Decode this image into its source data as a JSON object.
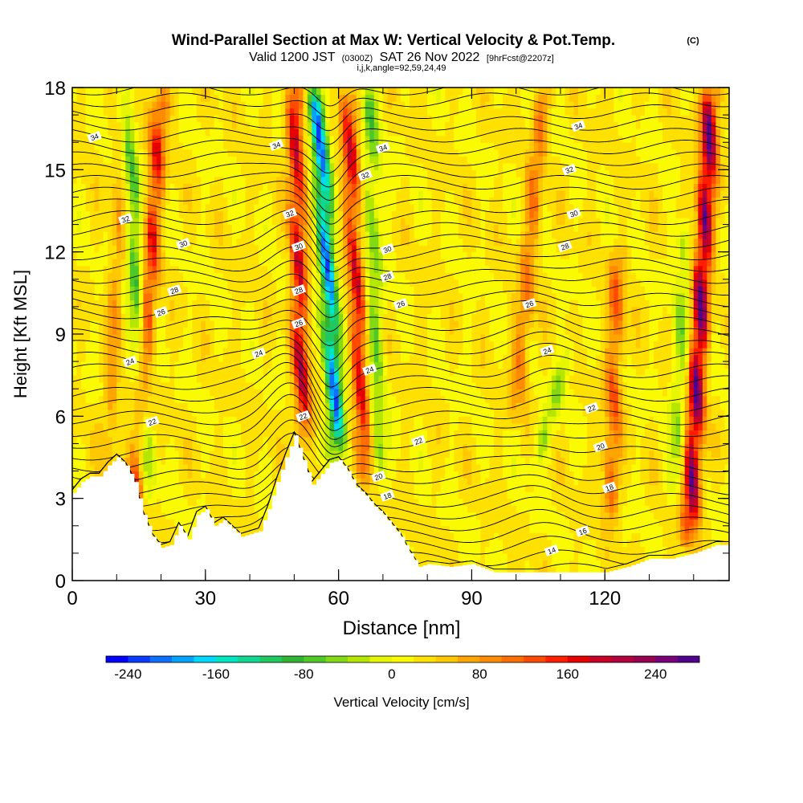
{
  "chart_data": {
    "type": "heatmap",
    "title": "Wind-Parallel Section at Max W: Vertical Velocity & Pot.Temp.",
    "title_mark": "(C)",
    "subtitle_parts": [
      "Valid 1200 JST",
      "(0300Z)",
      "SAT 26 Nov 2022",
      "[9hrFcst@2207z]"
    ],
    "subtitle2": "i,j,k,angle=92,59,24,49",
    "xlabel": "Distance [nm]",
    "ylabel": "Height [Kft MSL]",
    "xlim": [
      0,
      148
    ],
    "ylim": [
      0,
      18
    ],
    "x_ticks": [
      0,
      30,
      60,
      90,
      120
    ],
    "y_ticks": [
      0,
      3,
      6,
      9,
      12,
      15,
      18
    ],
    "x_minor_step": 10,
    "y_minor_step": 1,
    "colorbar": {
      "label": "Vertical Velocity [cm/s]",
      "min": -260,
      "max": 280,
      "tick_values": [
        -240,
        -160,
        -80,
        0,
        80,
        160,
        240
      ],
      "tick_labels": [
        "-240",
        "-160",
        "-80",
        "0",
        "80",
        "160",
        "240"
      ],
      "colors": [
        "#0000ff",
        "#0a3cff",
        "#0f70ff",
        "#00a4ff",
        "#00d8ff",
        "#00e6c0",
        "#10d890",
        "#20c860",
        "#32b432",
        "#50c828",
        "#82d914",
        "#b4e600",
        "#e6f500",
        "#fafa00",
        "#ffe100",
        "#ffc800",
        "#ffa500",
        "#ff8c00",
        "#ff6e00",
        "#ff4b00",
        "#ff1e00",
        "#e60000",
        "#c80028",
        "#b4003c",
        "#960050",
        "#780078",
        "#50008c"
      ]
    },
    "theta_isentrope_labels": [
      "14",
      "16",
      "18",
      "20",
      "22",
      "24",
      "26",
      "28",
      "30",
      "32",
      "34"
    ],
    "terrain_profile": {
      "x": [
        0,
        2,
        4,
        6,
        8,
        10,
        12,
        14,
        16,
        18,
        20,
        22,
        24,
        26,
        28,
        30,
        32,
        34,
        36,
        38,
        40,
        42,
        44,
        46,
        48,
        50,
        52,
        54,
        56,
        58,
        60,
        62,
        64,
        66,
        68,
        70,
        72,
        74,
        76,
        78,
        80,
        85,
        90,
        95,
        100,
        105,
        110,
        115,
        120,
        125,
        130,
        135,
        140,
        145,
        148
      ],
      "z": [
        3.2,
        3.6,
        3.8,
        3.8,
        4.2,
        4.5,
        4.2,
        3.6,
        2.4,
        1.6,
        1.2,
        1.3,
        2.0,
        1.5,
        2.4,
        2.6,
        2.0,
        2.2,
        1.9,
        1.6,
        1.7,
        1.8,
        2.6,
        3.6,
        4.5,
        5.3,
        4.4,
        3.5,
        3.9,
        4.3,
        4.4,
        4.0,
        3.4,
        3.1,
        2.7,
        2.4,
        2.0,
        1.6,
        1.0,
        0.5,
        0.6,
        0.5,
        0.6,
        0.3,
        0.3,
        0.3,
        0.3,
        0.3,
        0.3,
        0.5,
        0.8,
        0.8,
        1.0,
        1.3,
        1.3
      ]
    },
    "updraft_bands": [
      {
        "x0": 14,
        "x1": 20,
        "z0": 2.0,
        "z1": 18,
        "w": 150
      },
      {
        "x0": 8,
        "x1": 12,
        "z0": 4.0,
        "z1": 18,
        "w": 60
      },
      {
        "x0": 52,
        "x1": 50,
        "z0": 5.0,
        "z1": 18,
        "w": 190
      },
      {
        "x0": 66,
        "x1": 62,
        "z0": 3.5,
        "z1": 18,
        "w": 170
      },
      {
        "x0": 100,
        "x1": 106,
        "z0": 6.0,
        "z1": 18,
        "w": 90
      },
      {
        "x0": 121,
        "x1": 123,
        "z0": 2.0,
        "z1": 12.0,
        "w": 110
      },
      {
        "x0": 139,
        "x1": 144,
        "z0": 1.5,
        "z1": 18,
        "w": 260
      }
    ],
    "downdraft_bands": [
      {
        "x0": 17,
        "x1": 12,
        "z0": 3.0,
        "z1": 18,
        "w": -120
      },
      {
        "x0": 60,
        "x1": 55,
        "z0": 4.5,
        "z1": 18,
        "w": -260
      },
      {
        "x0": 69,
        "x1": 67,
        "z0": 3.5,
        "z1": 18,
        "w": -90
      },
      {
        "x0": 104,
        "x1": 112,
        "z0": 4.0,
        "z1": 8.5,
        "w": -70
      },
      {
        "x0": 136,
        "x1": 138,
        "z0": 3.0,
        "z1": 13.0,
        "w": -70
      }
    ],
    "grid": false,
    "legend": "bottom (horizontal colorbar)"
  }
}
